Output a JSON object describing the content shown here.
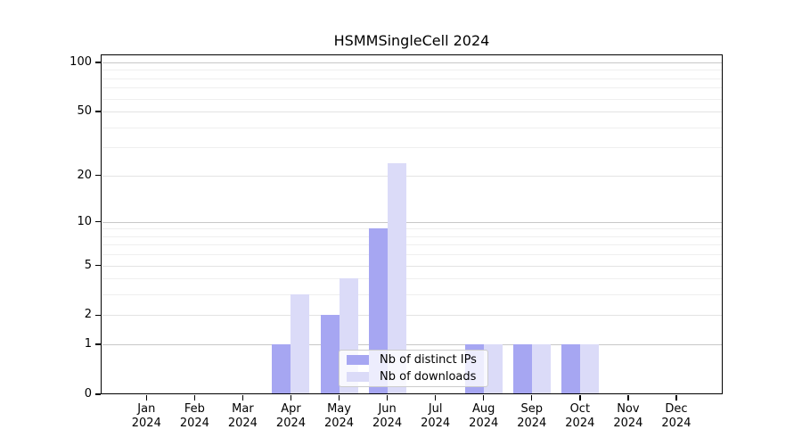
{
  "title": "HSMMSingleCell 2024",
  "colors": {
    "ips_bar": "#a6a6f2",
    "downloads_bar": "#dbdbf8",
    "grid_decade": "#c8c8c8",
    "grid_labeled": "#e3e3e3",
    "grid_minor": "#efefef",
    "axis": "#000000"
  },
  "legend": {
    "items": [
      {
        "label": "Nb of distinct IPs",
        "color_key": "ips_bar"
      },
      {
        "label": "Nb of downloads",
        "color_key": "downloads_bar"
      }
    ]
  },
  "chart_data": {
    "type": "bar",
    "title": "HSMMSingleCell 2024",
    "categories": [
      "Jan",
      "Feb",
      "Mar",
      "Apr",
      "May",
      "Jun",
      "Jul",
      "Aug",
      "Sep",
      "Oct",
      "Nov",
      "Dec"
    ],
    "category_year": "2024",
    "series": [
      {
        "name": "Nb of distinct IPs",
        "values": [
          0,
          0,
          0,
          1,
          2,
          9,
          0,
          1,
          1,
          1,
          0,
          0
        ]
      },
      {
        "name": "Nb of downloads",
        "values": [
          0,
          0,
          0,
          3,
          4,
          24,
          0,
          1,
          1,
          1,
          0,
          0
        ]
      }
    ],
    "xlabel": "",
    "ylabel": "",
    "yscale": "log1p",
    "yticks": [
      0,
      1,
      2,
      5,
      10,
      20,
      50,
      100
    ],
    "ytick_decades": [
      1,
      10,
      100
    ],
    "ytick_labeled_mid": [
      2,
      5,
      20,
      50
    ],
    "grid_minor_values": [
      3,
      4,
      6,
      7,
      8,
      9,
      30,
      40,
      60,
      70,
      80,
      90
    ],
    "ylim": [
      0,
      110
    ],
    "grid": "horizontal",
    "legend_position": "lower-center-right"
  }
}
